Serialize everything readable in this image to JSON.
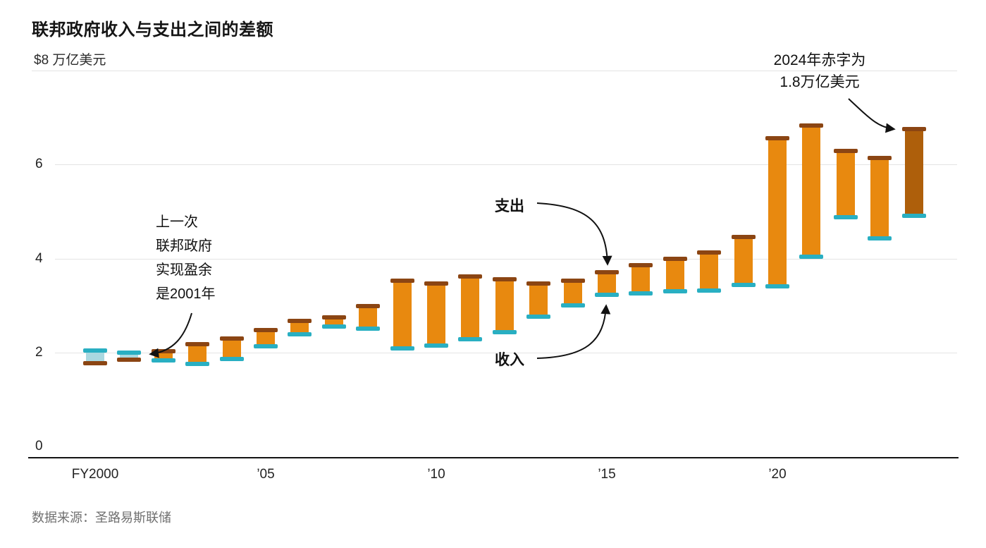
{
  "chart_data": {
    "type": "range-bar",
    "title": "联邦政府收入与支出之间的差额",
    "unit_label": "$8 万亿美元",
    "ylim": [
      0,
      8
    ],
    "y_ticks": [
      0,
      2,
      4,
      6
    ],
    "gridline_values": [
      2,
      4,
      6,
      8
    ],
    "x_ticks": [
      {
        "year": 2000,
        "label": "FY2000"
      },
      {
        "year": 2005,
        "label": "’05"
      },
      {
        "year": 2010,
        "label": "’10"
      },
      {
        "year": 2015,
        "label": "’15"
      },
      {
        "year": 2020,
        "label": "’20"
      }
    ],
    "years": [
      2000,
      2001,
      2002,
      2003,
      2004,
      2005,
      2006,
      2007,
      2008,
      2009,
      2010,
      2011,
      2012,
      2013,
      2014,
      2015,
      2016,
      2017,
      2018,
      2019,
      2020,
      2021,
      2022,
      2023,
      2024
    ],
    "series": [
      {
        "name": "收入",
        "role": "revenue",
        "values": [
          2.03,
          1.99,
          1.85,
          1.78,
          1.88,
          2.15,
          2.41,
          2.57,
          2.52,
          2.11,
          2.16,
          2.3,
          2.45,
          2.78,
          3.02,
          3.25,
          3.27,
          3.32,
          3.33,
          3.46,
          3.42,
          4.05,
          4.9,
          4.44,
          4.92
        ]
      },
      {
        "name": "支出",
        "role": "spending",
        "values": [
          1.79,
          1.86,
          2.01,
          2.16,
          2.29,
          2.47,
          2.66,
          2.73,
          2.98,
          3.52,
          3.46,
          3.6,
          3.54,
          3.45,
          3.51,
          3.69,
          3.85,
          3.98,
          4.11,
          4.45,
          6.55,
          6.82,
          6.27,
          6.13,
          6.75
        ]
      }
    ],
    "surplus_years": [
      2000,
      2001
    ],
    "highlight_year": 2024,
    "deficit_2024_trillion": 1.8,
    "colors": {
      "deficit_fill": "#E8890F",
      "highlight_fill": "#AE5F0B",
      "surplus_fill": "#A9D8E0",
      "spending_cap": "#8B4513",
      "revenue_cap": "#29AFC2",
      "gridline": "#E4E4E4",
      "axis": "#141414"
    },
    "annotations": {
      "surplus_note": "上一次\n联邦政府\n实现盈余\n是2001年",
      "spending_label": "支出",
      "revenue_label": "收入",
      "deficit_note": "2024年赤字为\n1.8万亿美元"
    },
    "source": "数据来源：圣路易斯联储"
  }
}
